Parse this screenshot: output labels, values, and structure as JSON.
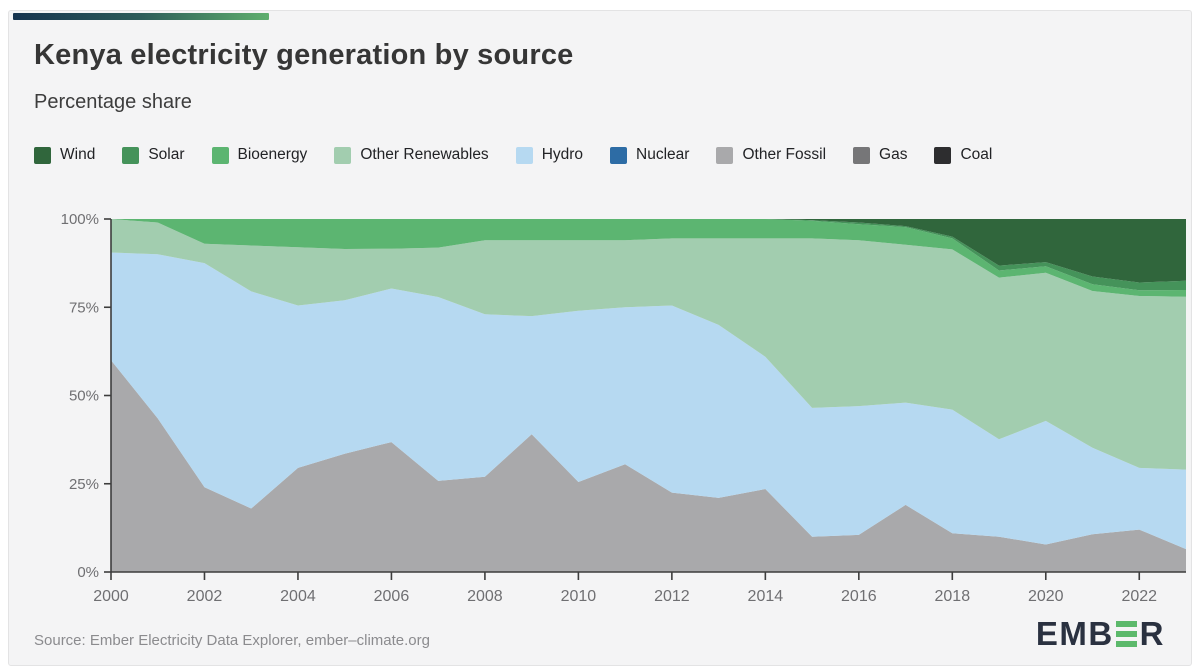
{
  "header": {
    "title": "Kenya electricity generation by source",
    "subtitle": "Percentage share"
  },
  "accent": {
    "gradient_from": "#16344f",
    "gradient_to": "#5faf6e"
  },
  "chart_data": {
    "type": "area",
    "stacked": true,
    "units": "percent",
    "title": "Kenya electricity generation by source",
    "subtitle": "Percentage share",
    "xlabel": "",
    "ylabel": "Percentage share",
    "ylim": [
      0,
      100
    ],
    "grid": false,
    "legend_position": "top",
    "stack_order": "last-listed-series-at-bottom",
    "x": [
      2000,
      2001,
      2002,
      2003,
      2004,
      2005,
      2006,
      2007,
      2008,
      2009,
      2010,
      2011,
      2012,
      2013,
      2014,
      2015,
      2016,
      2017,
      2018,
      2019,
      2020,
      2021,
      2022,
      2023
    ],
    "x_tick_labels": [
      "2000",
      "2002",
      "2004",
      "2006",
      "2008",
      "2010",
      "2012",
      "2014",
      "2016",
      "2018",
      "2020",
      "2022"
    ],
    "y_tick_labels": [
      "0%",
      "25%",
      "50%",
      "75%",
      "100%"
    ],
    "series": [
      {
        "name": "Wind",
        "color": "#30663c",
        "values": [
          0,
          0,
          0,
          0,
          0,
          0,
          0,
          0,
          0,
          0,
          0,
          0,
          0,
          0,
          0,
          0.3,
          1,
          2,
          5,
          13.2,
          12.2,
          16.3,
          18,
          17.5
        ]
      },
      {
        "name": "Solar",
        "color": "#45935a",
        "values": [
          0,
          0,
          0,
          0,
          0,
          0,
          0,
          0,
          0,
          0,
          0,
          0,
          0,
          0,
          0,
          0.2,
          0.5,
          0.3,
          0.5,
          1.4,
          1.2,
          2.2,
          2.2,
          2.6
        ]
      },
      {
        "name": "Bioenergy",
        "color": "#5cb571",
        "values": [
          0,
          1,
          7,
          7.5,
          8,
          8.5,
          8.4,
          8.1,
          6,
          6,
          6,
          6,
          5.5,
          5.5,
          5.5,
          5,
          4.5,
          5,
          3.1,
          2,
          1.8,
          1.9,
          1.6,
          1.9
        ]
      },
      {
        "name": "Other Renewables",
        "color": "#a2cdaf",
        "values": [
          9.5,
          9,
          5.5,
          13,
          16.5,
          14.5,
          11.3,
          14,
          21,
          21.5,
          20,
          19,
          19,
          24.5,
          33.5,
          48,
          47,
          44.7,
          45.4,
          45.8,
          42,
          44.4,
          48.7,
          49
        ]
      },
      {
        "name": "Hydro",
        "color": "#b6d9f1",
        "values": [
          30.5,
          46.5,
          63.5,
          61.5,
          46,
          43.5,
          43.5,
          52.1,
          46,
          33.5,
          48.5,
          44.5,
          53,
          49,
          37.5,
          36.5,
          36.5,
          29,
          35,
          27.6,
          35,
          24.5,
          17.5,
          22.5
        ]
      },
      {
        "name": "Nuclear",
        "color": "#2d6ca5",
        "values": [
          0,
          0,
          0,
          0,
          0,
          0,
          0,
          0,
          0,
          0,
          0,
          0,
          0,
          0,
          0,
          0,
          0,
          0,
          0,
          0,
          0,
          0,
          0,
          0
        ]
      },
      {
        "name": "Other Fossil",
        "color": "#a9a9ab",
        "values": [
          60,
          43.5,
          24,
          18,
          29.5,
          33.5,
          36.8,
          25.8,
          27,
          39,
          25.5,
          30.5,
          22.5,
          21,
          23.5,
          10,
          10.5,
          19,
          11,
          10,
          7.8,
          10.7,
          12,
          6.5
        ]
      },
      {
        "name": "Gas",
        "color": "#767678",
        "values": [
          0,
          0,
          0,
          0,
          0,
          0,
          0,
          0,
          0,
          0,
          0,
          0,
          0,
          0,
          0,
          0,
          0,
          0,
          0,
          0,
          0,
          0,
          0,
          0
        ]
      },
      {
        "name": "Coal",
        "color": "#2d2d2f",
        "values": [
          0,
          0,
          0,
          0,
          0,
          0,
          0,
          0,
          0,
          0,
          0,
          0,
          0,
          0,
          0,
          0,
          0,
          0,
          0,
          0,
          0,
          0,
          0,
          0
        ]
      }
    ]
  },
  "footer": {
    "source": "Source: Ember Electricity Data Explorer, ember–climate.org",
    "logo": {
      "prefix": "EMB",
      "suffix": "R"
    }
  }
}
